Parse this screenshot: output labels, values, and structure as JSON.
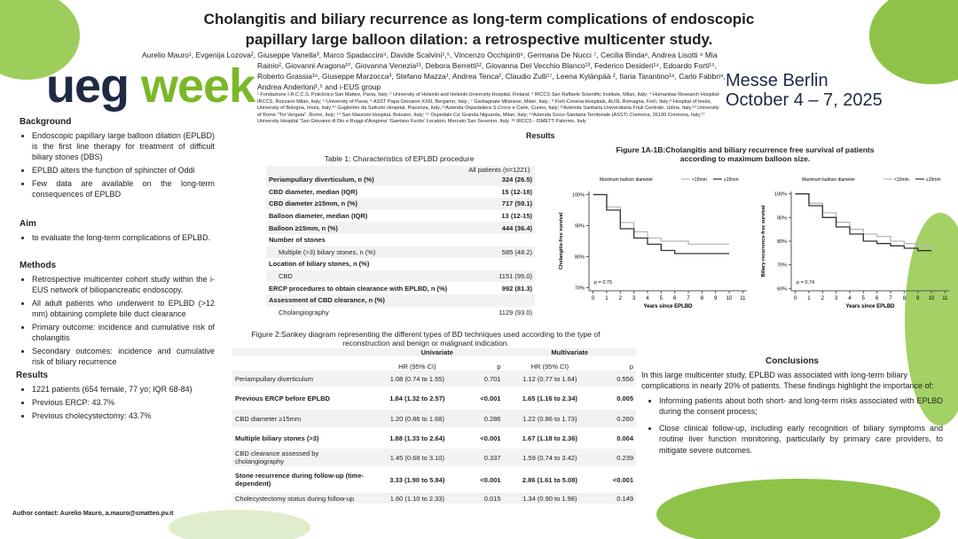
{
  "header": {
    "title_line1": "Cholangitis and biliary recurrence as long-term complications of endoscopic",
    "title_line2": "papillary large balloon dilation: a retrospective multicenter study.",
    "authors": "Aurelio Mauro¹, Evgenija Lozova², Giuseppe Vanella³, Marco Spadaccini⁴, Davide Scalvini¹,⁵, Vincenzo Occhipinti⁶, Germana De Nucci ⁷, Cecilia Binda⁸, Andrea Lisotti ⁹ Mia Rainio², Giovanni Aragona¹⁰, Giovanna Venezia¹¹, Debora Berretti¹², Giovanna Del Vecchio Blanco¹³, Federico Desideri¹⁴, Edoardo Forti¹⁵, Roberto Grassia¹⁶, Giuseppe Marzocca³, Stefano Mazza¹, Andrea Tenca², Claudio Zulli¹⁷, Leena Kylänpää ², Ilaria Tarantino¹⁸, Carlo Fabbri⁹, Andrea Anderloni¹,⁵ and i-EUS group",
    "affiliations": "¹ Fondazione I.R.C.C.S. Policlinico San Matteo, Pavia, Italy; ² University of Helsinki and Helsinki University Hospital, Finland; ³ IRCCS San Raffaele Scientific Institute, Milan, Italy; ⁴ Humanitas Research Hospital-IRCCS, Rozzano Milan, Italy; ⁵ University of Pavia; ⁶ ASST Papa Giovanni XXIII, Bergamo, Italy.; ⁷ Garbagnate Milanese, Milan, Italy.; ⁸ Forlì-Cesena Hospitals, AUSL Romagna, Forlì, Italy;⁹ Hospital of Imola, University of Bologna, Imola, Italy;¹⁰ Guglielmo da Saliceto Hospital, Piacenza, Italy.;¹¹Azienda Ospedaliera S.Croce e Carle, Cuneo, Italy; ¹²Azienda Sanitaria Universitaria Friuli Centrale, Udine, Italy;¹³ University of Rome \"Tor Vergata\". Rome, Italy; ¹⁴ San Maurizio Hospital, Bolzano, Italy; ¹⁵ Ospedale Ca' Granda Niguarda, Milan, Italy; ¹⁶Azienda Socio-Sanitaria Territoriale (ASST) Cremona, 26100 Cremona, Italy;¹⁷ University Hospital 'San Giovanni di Dio e Ruggi d'Aragona' 'Gaetano Fucito' Location, Mercato San Severino, Italy. ¹⁸ IRCCS - ISMETT Palermo, Italy",
    "logo_a": "ueg",
    "logo_b": "week",
    "venue": "Messe Berlin",
    "dates": "October 4 – 7, 2025"
  },
  "left": {
    "background": {
      "heading": "Background",
      "items": [
        "Endoscopic papillary large balloon dilation (EPLBD) is the first line therapy for treatment of difficult biliary stones (DBS)",
        "EPLBD alters the function of sphincter of Oddi",
        "Few data are available on the long-term consequences of EPLBD"
      ]
    },
    "aim": {
      "heading": "Aim",
      "items": [
        "to evaluate the long-term complications of EPLBD."
      ]
    },
    "methods": {
      "heading": "Methods",
      "items": [
        "Retrospective multicenter cohort study within the i-EUS network of biliopancreatic endoscopy.",
        "All adult patients who underwent to EPLBD (>12 mm) obtaining complete bile duct clearance",
        "Primary outcome: incidence and cumulative risk of cholangitis",
        "Secondary outcomes: incidence and cumulative risk of biliary recurrence"
      ]
    },
    "results": {
      "heading": "Results",
      "items": [
        "1221 patients (654 female, 77 yo; IQR 68-84)",
        "Previous ERCP: 43.7%",
        "Previous cholecystectomy: 43.7%"
      ]
    },
    "contact": "Author contact: Aurelio Mauro, a.mauro@smatteo.pv.it"
  },
  "results_heading": "Results",
  "table1": {
    "title": "Table 1: Characteristics of EPLBD procedure",
    "column": "All patients (n=1221)",
    "rows": [
      [
        "Periampullary diverticulum, n (%)",
        "324 (26.5)"
      ],
      [
        "CBD diameter, median (IQR)",
        "15 (12-18)"
      ],
      [
        "CBD diameter ≥15mm, n (%)",
        "717 (59.1)"
      ],
      [
        "Balloon diameter, median (IQR)",
        "13 (12-15)"
      ],
      [
        "Balloon ≥15mm, n (%)",
        "444 (36.4)"
      ],
      [
        "Number of stones"
      ],
      [
        "Multiple (>3) biliary stones, n (%)",
        "585 (48.2)"
      ],
      [
        "Location of biliary stones, n (%)"
      ],
      [
        "CBD",
        "1151 (95.0)"
      ],
      [
        "ERCP procedures to obtain clearance with EPLBD, n (%)",
        "992 (81.3)"
      ],
      [
        "Assessment of CBD clearance, n (%)"
      ],
      [
        "Cholangiography",
        "1129 (93.0)"
      ]
    ]
  },
  "figure1_title": "Figure 1A-1B:Cholangitis and biliary recurrence free survival of patients according to maximum balloon size.",
  "chart_data": [
    {
      "type": "line",
      "legend_title": "Maximum balloon diameter",
      "ylabel": "Cholangitis-free survival",
      "xlabel": "Years since EPLBD",
      "annotation": "p = 0.75",
      "x": [
        0,
        1,
        2,
        3,
        4,
        5,
        6,
        7,
        8,
        9,
        10
      ],
      "series": [
        {
          "name": "<15mm",
          "color": "#b8b8b8",
          "values": [
            100,
            96,
            91,
            88,
            86,
            85,
            85,
            84,
            84,
            84,
            84
          ]
        },
        {
          "name": "≥15mm",
          "color": "#333333",
          "values": [
            100,
            95,
            89,
            86,
            84,
            82,
            81,
            81,
            81,
            81,
            81
          ]
        }
      ],
      "xlim": [
        -0.3,
        11.3
      ],
      "xticks": [
        0,
        1,
        2,
        3,
        4,
        5,
        6,
        7,
        8,
        9,
        10,
        11
      ],
      "ylim": [
        69,
        101
      ],
      "yticks": [
        {
          "value": 70,
          "label": "70%"
        },
        {
          "value": 80,
          "label": "80%"
        },
        {
          "value": 90,
          "label": "90%"
        },
        {
          "value": 100,
          "label": "100%"
        }
      ]
    },
    {
      "type": "line",
      "legend_title": "Maximum balloon diameter",
      "ylabel": "Biliary recurrence-free survival",
      "xlabel": "Years since EPLBD",
      "annotation": "p = 0.74",
      "x": [
        0,
        1,
        2,
        3,
        4,
        5,
        6,
        7,
        8,
        9,
        10
      ],
      "series": [
        {
          "name": "<15mm",
          "color": "#b8b8b8",
          "values": [
            100,
            96,
            92,
            88,
            85,
            83,
            82,
            80,
            79,
            78,
            78
          ]
        },
        {
          "name": "≥15mm",
          "color": "#333333",
          "values": [
            100,
            95,
            90,
            86,
            83,
            80,
            79,
            78,
            77,
            76,
            76
          ]
        }
      ],
      "xlim": [
        -0.3,
        11.3
      ],
      "xticks": [
        0,
        1,
        2,
        3,
        4,
        5,
        6,
        7,
        8,
        9,
        10,
        11
      ],
      "ylim": [
        59,
        101
      ],
      "yticks": [
        {
          "value": 60,
          "label": "60%"
        },
        {
          "value": 70,
          "label": "70%"
        },
        {
          "value": 80,
          "label": "80%"
        },
        {
          "value": 90,
          "label": "90%"
        },
        {
          "value": 100,
          "label": "100%"
        }
      ]
    }
  ],
  "table2": {
    "title": "Figure 2:Sankey diagram representing the different types of BD techniques used according to the type of reconstruction and benign or malignant indication.",
    "groups": [
      "Univariate",
      "Multivariate"
    ],
    "columns": [
      "HR (95% CI)",
      "p",
      "HR (95% CI)",
      "p"
    ],
    "rows": [
      [
        "Periampullary diverticulum",
        "1.08 (0.74 to 1.55)",
        "0.701",
        "1.12 (0.77 to 1.64)",
        "0.556"
      ],
      [
        "Previous ERCP before EPLBD",
        "1.84 (1.32 to 2.57)",
        "<0.001",
        "1.65 (1.16 to 2.34)",
        "0.005"
      ],
      [
        "CBD diameter ≥15mm",
        "1.20 (0.86 to 1.68)",
        "0.286",
        "1.22 (0.86 to 1.73)",
        "0.260"
      ],
      [
        "Multiple biliary stones (>3)",
        "1.88 (1.33 to 2.64)",
        "<0.001",
        "1.67 (1.18 to 2.36)",
        "0.004"
      ],
      [
        "CBD clearance assessed by cholangiography",
        "1.45 (0.68 to 3.10)",
        "0.337",
        "1.59 (0.74 to 3.42)",
        "0.239"
      ],
      [
        "Stone recurrence during follow-up (time-dependent)",
        "3.33 (1.90 to 5.84)",
        "<0.001",
        "2.86 (1.61 to 5.08)",
        "<0.001"
      ],
      [
        "Cholecystectomy status during follow-up",
        "1.60 (1.10 to 2.33)",
        "0.015",
        "1.34 (0.90 to 1.98)",
        "0.149"
      ]
    ]
  },
  "conclusions": {
    "heading": "Conclusions",
    "text": "In this large multicenter study, EPLBD was associated with long-term biliary complications in nearly 20% of patients. These findings highlight the importance of:",
    "items": [
      "Informing patients about both short- and long-term risks associated with EPLBD during the consent process;",
      "Close clinical follow-up, including early recognition of biliary symptoms and routine liver function monitoring, particularly by primary care providers, to mitigate severe outcomes."
    ]
  }
}
